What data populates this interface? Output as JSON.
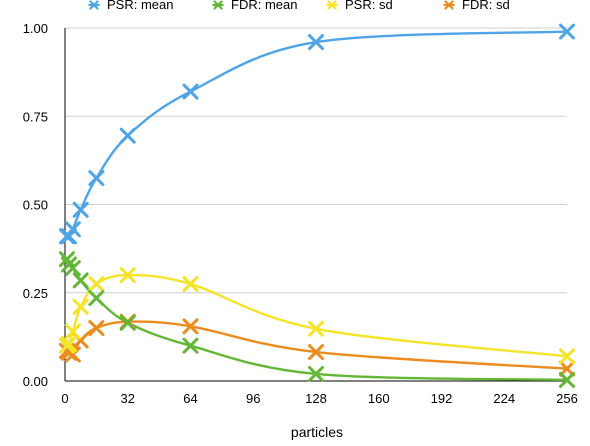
{
  "chart_data": {
    "type": "scatter",
    "title": "",
    "xlabel": "particles",
    "ylabel": "",
    "xlim": [
      0,
      256
    ],
    "ylim": [
      0,
      1
    ],
    "xticks": [
      0,
      32,
      64,
      96,
      128,
      160,
      192,
      224,
      256
    ],
    "yticks": [
      0,
      0.25,
      0.5,
      0.75,
      1
    ],
    "ytick_labels": [
      "0.00",
      "0.25",
      "0.50",
      "0.75",
      "1.00"
    ],
    "grid": "horizontal",
    "legend_position": "top",
    "x": [
      1,
      2,
      4,
      8,
      16,
      32,
      64,
      128,
      256
    ],
    "series": [
      {
        "name": "PSR: mean",
        "color": "#4ea4e6",
        "values": [
          0.41,
          0.41,
          0.43,
          0.485,
          0.575,
          0.695,
          0.82,
          0.96,
          0.99
        ]
      },
      {
        "name": "FDR: mean",
        "color": "#63b737",
        "values": [
          0.345,
          0.33,
          0.32,
          0.285,
          0.235,
          0.165,
          0.1,
          0.02,
          0.003
        ]
      },
      {
        "name": "PSR: sd",
        "color": "#f5e427",
        "values": [
          0.1,
          0.105,
          0.14,
          0.21,
          0.275,
          0.3,
          0.275,
          0.148,
          0.07
        ]
      },
      {
        "name": "FDR: sd",
        "color": "#ec8c1e",
        "values": [
          0.085,
          0.08,
          0.075,
          0.115,
          0.15,
          0.168,
          0.155,
          0.082,
          0.035
        ]
      }
    ]
  }
}
